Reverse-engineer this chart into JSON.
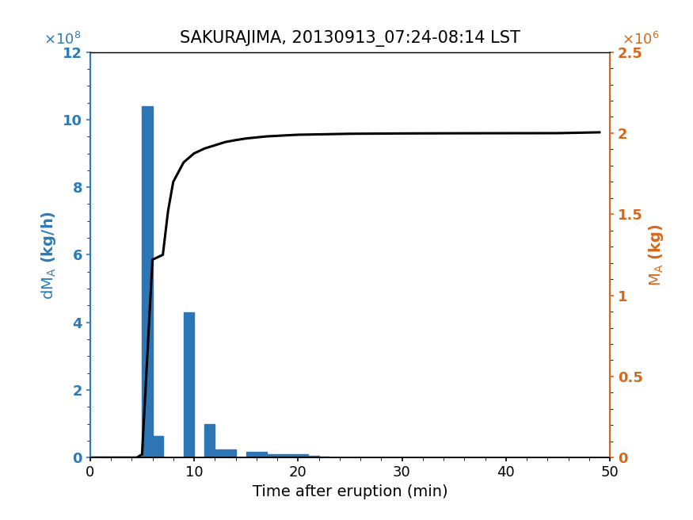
{
  "title": "SAKURAJIMA, 20130913_07:24-08:14 LST",
  "xlabel": "Time after eruption (min)",
  "ylabel_left": "dM_A (kg/h)",
  "ylabel_right": "M_A (kg)",
  "bar_lefts": [
    5,
    6,
    9,
    11,
    12,
    13,
    15,
    17,
    19,
    21,
    22
  ],
  "bar_widths": [
    1,
    1,
    1,
    1,
    1,
    1,
    2,
    2,
    2,
    1,
    1
  ],
  "bar_heights": [
    1040000000.0,
    65000000.0,
    430000000.0,
    100000000.0,
    25000000.0,
    25000000.0,
    16000000.0,
    10000000.0,
    9000000.0,
    5000000.0,
    4000000.0
  ],
  "bar_color": "#2e75b6",
  "line_x": [
    0,
    4.5,
    5.0,
    6.0,
    7.0,
    7.5,
    8.0,
    9.0,
    10.0,
    11.0,
    12.0,
    13.0,
    14.0,
    15.0,
    17.0,
    20.0,
    25.0,
    30.0,
    35.0,
    40.0,
    45.0,
    49.0
  ],
  "line_y": [
    0,
    0,
    20000.0,
    1220000.0,
    1250000.0,
    1520000.0,
    1700000.0,
    1820000.0,
    1875000.0,
    1905000.0,
    1925000.0,
    1945000.0,
    1957000.0,
    1967000.0,
    1980000.0,
    1990000.0,
    1996000.0,
    1998000.0,
    1999000.0,
    1999500.0,
    1999800.0,
    2005000.0
  ],
  "line_color": "black",
  "line_width": 2.2,
  "xlim": [
    0,
    50
  ],
  "ylim_left": [
    0,
    1200000000.0
  ],
  "ylim_right": [
    0,
    2500000.0
  ],
  "left_yticks": [
    0,
    200000000.0,
    400000000.0,
    600000000.0,
    800000000.0,
    1000000000.0,
    1200000000.0
  ],
  "left_ytick_labels": [
    "0",
    "2",
    "4",
    "6",
    "8",
    "10",
    "12"
  ],
  "left_exponent": "×10",
  "left_exp_power": "8",
  "right_yticks": [
    0,
    500000.0,
    1000000.0,
    1500000.0,
    2000000.0,
    2500000.0
  ],
  "right_ytick_labels": [
    "0",
    "0.5",
    "1",
    "1.5",
    "2",
    "2.5"
  ],
  "right_exponent": "×10",
  "right_exp_power": "6",
  "xticks": [
    0,
    10,
    20,
    30,
    40,
    50
  ],
  "left_color": "#2b7bba",
  "right_color": "#d2691e",
  "title_fontsize": 15,
  "label_fontsize": 14,
  "tick_fontsize": 13,
  "exp_fontsize": 13
}
